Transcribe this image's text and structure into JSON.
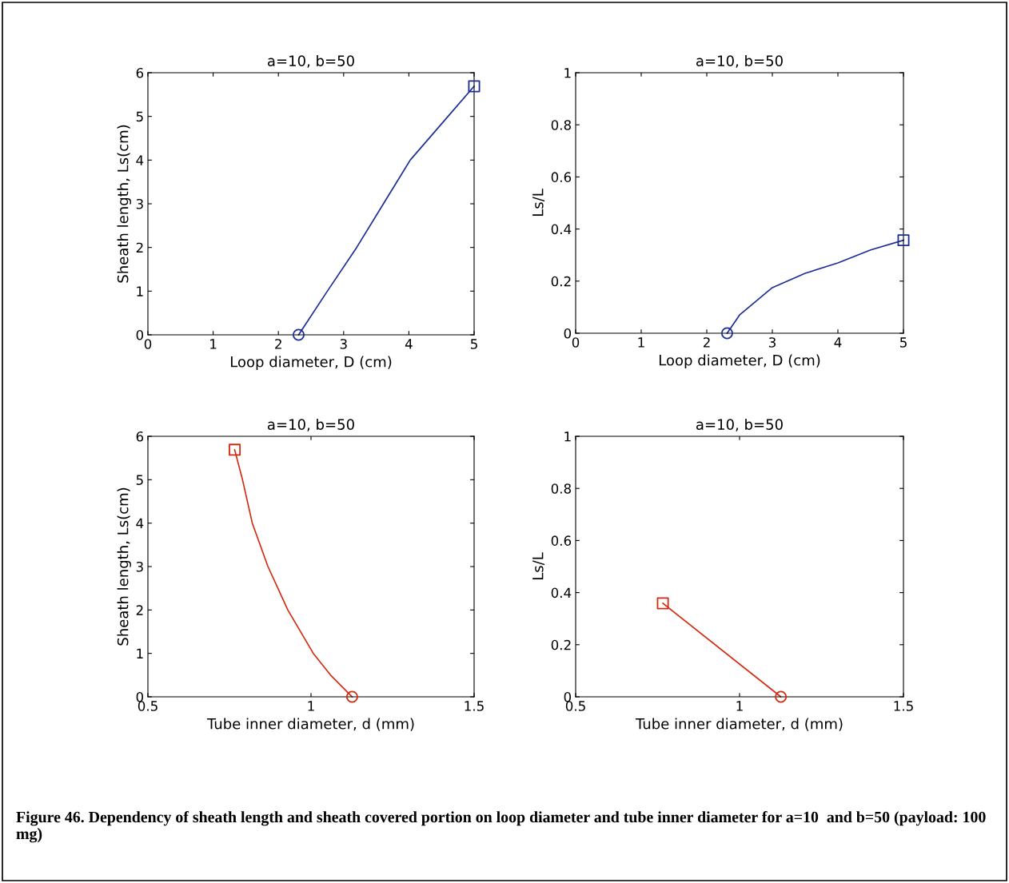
{
  "chart_data": [
    {
      "type": "line",
      "title": "a=10, b=50",
      "xlabel": "Loop diameter, D (cm)",
      "ylabel": "Sheath length, Ls(cm)",
      "xlim": [
        0,
        5
      ],
      "ylim": [
        0,
        6
      ],
      "xticks": [
        0,
        1,
        2,
        3,
        4,
        5
      ],
      "yticks": [
        0,
        1,
        2,
        3,
        4,
        5,
        6
      ],
      "grid": false,
      "legend": false,
      "series": [
        {
          "color": "#1a2d9a",
          "marker": "none",
          "x": [
            2.31,
            2.75,
            3.2,
            3.61,
            4.02,
            4.6,
            5
          ],
          "values": [
            0,
            1,
            2,
            3,
            4,
            5,
            5.69
          ]
        },
        {
          "type": "scatter",
          "color": "#1a2d9a",
          "marker": "circle",
          "x": [
            2.31
          ],
          "values": [
            0
          ]
        },
        {
          "type": "scatter",
          "color": "#1a2d9a",
          "marker": "square",
          "x": [
            5
          ],
          "values": [
            5.69
          ]
        }
      ]
    },
    {
      "type": "line",
      "title": "a=10, b=50",
      "xlabel": "Loop diameter, D (cm)",
      "ylabel": "Ls/L",
      "xlim": [
        0,
        5
      ],
      "ylim": [
        0,
        1
      ],
      "xticks": [
        0,
        1,
        2,
        3,
        4,
        5
      ],
      "yticks": [
        0,
        0.2,
        0.4,
        0.6,
        0.8,
        1
      ],
      "grid": false,
      "legend": false,
      "series": [
        {
          "color": "#1a2d9a",
          "marker": "none",
          "x": [
            2.31,
            2.5,
            3,
            3.5,
            4,
            4.5,
            5
          ],
          "values": [
            0,
            0.07,
            0.175,
            0.23,
            0.27,
            0.32,
            0.357
          ]
        },
        {
          "type": "scatter",
          "color": "#1a2d9a",
          "marker": "circle",
          "x": [
            2.31
          ],
          "values": [
            0
          ]
        },
        {
          "type": "scatter",
          "color": "#1a2d9a",
          "marker": "square",
          "x": [
            5
          ],
          "values": [
            0.357
          ]
        }
      ]
    },
    {
      "type": "line",
      "title": "a=10, b=50",
      "xlabel": "Tube inner diameter, d (mm)",
      "ylabel": "Sheath length, Ls(cm)",
      "xlim": [
        0.5,
        1.5
      ],
      "ylim": [
        0,
        6
      ],
      "xticks": [
        0.5,
        1,
        1.5
      ],
      "yticks": [
        0,
        1,
        2,
        3,
        4,
        5,
        6
      ],
      "grid": false,
      "legend": false,
      "series": [
        {
          "color": "#d42a10",
          "marker": "none",
          "x": [
            0.766,
            0.79,
            0.82,
            0.868,
            0.929,
            1.007,
            1.06,
            1.126
          ],
          "values": [
            5.69,
            5,
            4,
            3,
            2,
            1,
            0.5,
            0
          ]
        },
        {
          "type": "scatter",
          "color": "#d42a10",
          "marker": "square",
          "x": [
            0.766
          ],
          "values": [
            5.69
          ]
        },
        {
          "type": "scatter",
          "color": "#d42a10",
          "marker": "circle",
          "x": [
            1.126
          ],
          "values": [
            0
          ]
        }
      ]
    },
    {
      "type": "line",
      "title": "a=10, b=50",
      "xlabel": "Tube inner diameter, d (mm)",
      "ylabel": "Ls/L",
      "xlim": [
        0.5,
        1.5
      ],
      "ylim": [
        0,
        1
      ],
      "xticks": [
        0.5,
        1,
        1.5
      ],
      "yticks": [
        0,
        0.2,
        0.4,
        0.6,
        0.8,
        1
      ],
      "grid": false,
      "legend": false,
      "annotations": [
        "Figure 46. Dependency of sheath length and sheath covered portion on loop diameter and tube inner diameter for a=10  and b=50 (payload: 100 mg)"
      ],
      "series": [
        {
          "color": "#d42a10",
          "marker": "none",
          "x": [
            0.766,
            1.126
          ],
          "values": [
            0.359,
            0
          ]
        },
        {
          "type": "scatter",
          "color": "#d42a10",
          "marker": "square",
          "x": [
            0.766
          ],
          "values": [
            0.359
          ]
        },
        {
          "type": "scatter",
          "color": "#d42a10",
          "marker": "circle",
          "x": [
            1.126
          ],
          "values": [
            0
          ]
        }
      ]
    }
  ]
}
